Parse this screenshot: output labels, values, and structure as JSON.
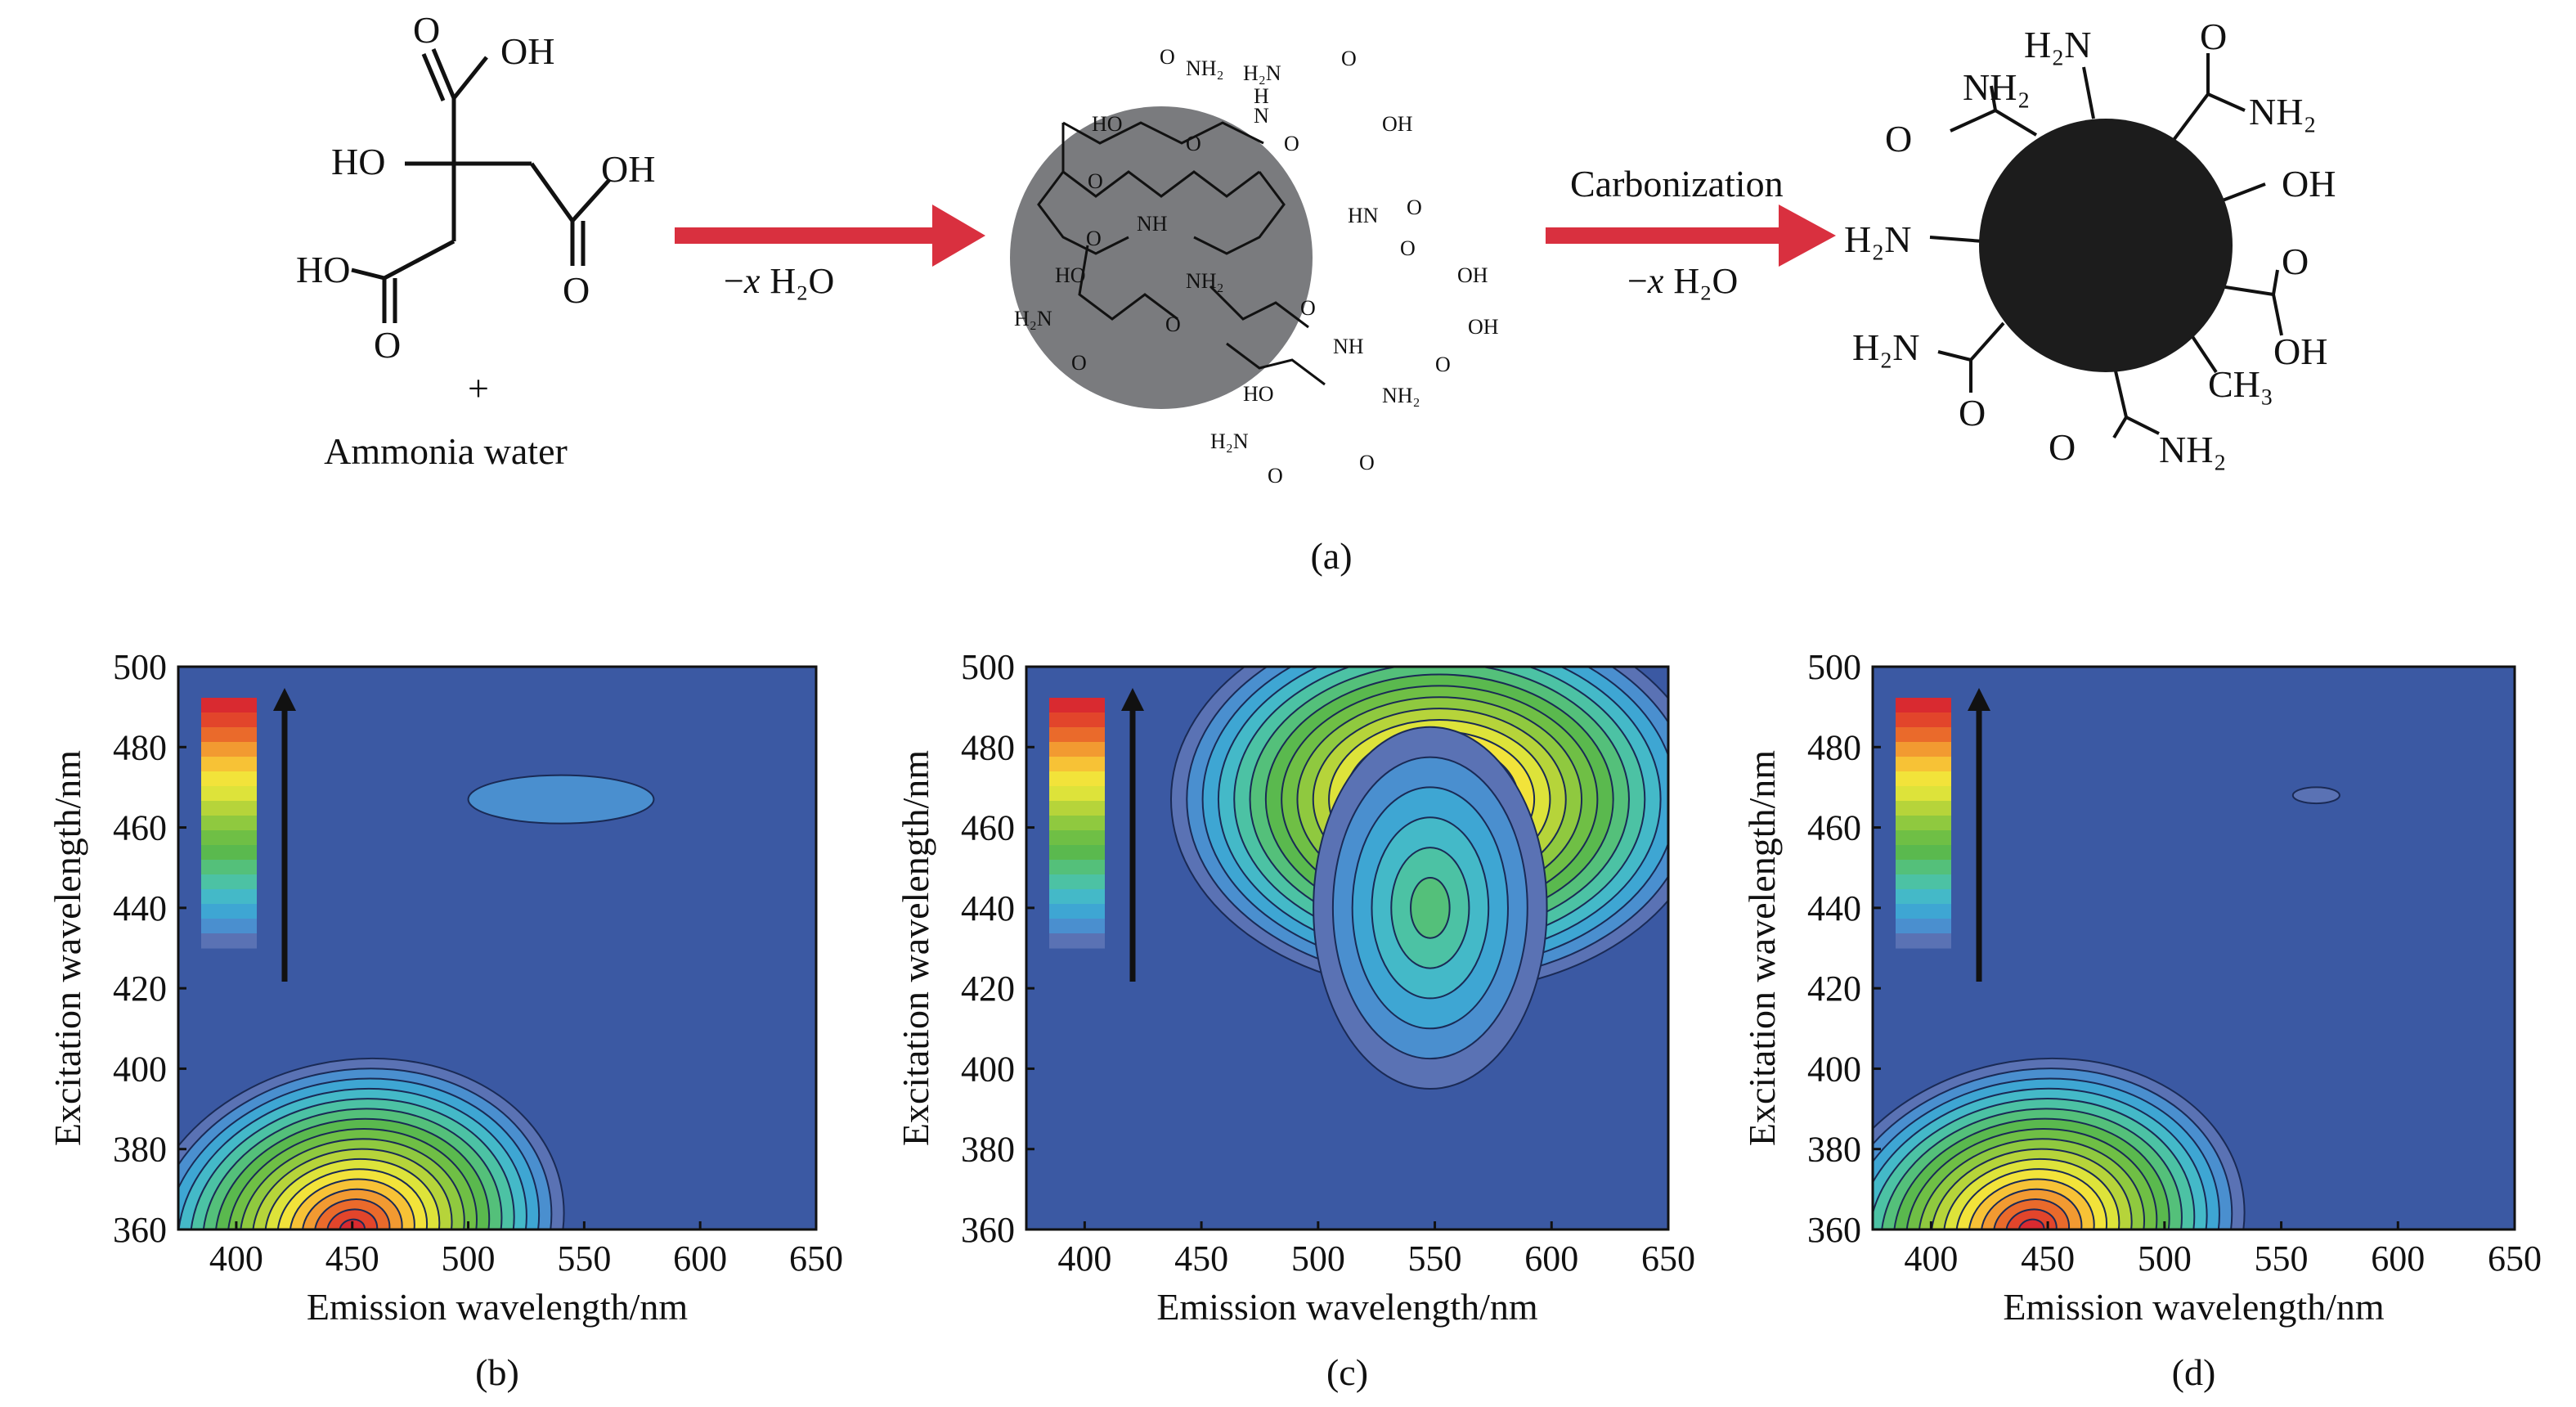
{
  "figure": {
    "panel_labels": {
      "a": "(a)",
      "b": "(b)",
      "c": "(c)",
      "d": "(d)"
    },
    "reaction": {
      "reactant_label": "+",
      "reagent": "Ammonia water",
      "step1": {
        "minus": "−",
        "x": "x",
        "water": "H₂O"
      },
      "step2": {
        "label": "Carbonization",
        "minus": "−",
        "x": "x",
        "water": "H₂O"
      }
    },
    "citric_acid": {
      "groups": {
        "oh_top": "OH",
        "o_top": "O",
        "ho_left": "HO",
        "oh_right": "OH",
        "o_right": "O",
        "ho_bottom": "HO",
        "o_bottom": "O"
      }
    },
    "polymer": {
      "groups": {
        "t1": "O",
        "t2": "NH₂",
        "t3": "H₂N",
        "t4": "O",
        "t5": "HO",
        "t6": "H",
        "t7": "N",
        "t8": "OH",
        "t9": "O",
        "t10": "O",
        "t11": "O",
        "t12": "NH",
        "t13": "HN",
        "t14": "O",
        "t15": "O",
        "t16": "HO",
        "t17": "NH₂",
        "t18": "O",
        "t19": "OH",
        "t20": "H₂N",
        "t21": "O",
        "t22": "O",
        "t23": "NH",
        "t24": "OH",
        "t25": "O",
        "t26": "O",
        "t27": "HO",
        "t28": "NH₂",
        "t29": "H₂N",
        "t30": "O",
        "t31": "O"
      }
    },
    "carbon_dot": {
      "groups": {
        "h2n_top": "H₂N",
        "nh2_a": "NH₂",
        "o_a": "O",
        "o_b": "O",
        "nh2_b": "NH₂",
        "oh_c": "OH",
        "h2n_left": "H₂N",
        "o_d": "O",
        "oh_d": "OH",
        "ch3": "CH₃",
        "h2n_e": "H₂N",
        "o_e": "O",
        "o_f": "O",
        "nh2_f": "NH₂"
      }
    }
  },
  "colors": {
    "arrow": "#d9303f",
    "particle_gray": "#7a7b7e",
    "carbon_dot": "#1c1c1c",
    "contour_background": "#3b59a3",
    "colorbar": [
      "#5a72b4",
      "#4a8fcf",
      "#3ea6d3",
      "#44b9c8",
      "#4cc2a4",
      "#54c07a",
      "#5ab94e",
      "#6fbf45",
      "#8fc93f",
      "#b6d43a",
      "#dde33a",
      "#f2e33a",
      "#f7c236",
      "#f29a31",
      "#ea6a2b",
      "#e2452b",
      "#d92a30"
    ]
  },
  "chart_data": [
    {
      "panel": "(b)",
      "type": "heatmap",
      "subtype": "contour",
      "xlabel": "Emission wavelength/nm",
      "ylabel": "Excitation wavelength/nm",
      "xlim": [
        375,
        650
      ],
      "ylim": [
        360,
        500
      ],
      "xticks": [
        400,
        450,
        500,
        550,
        600,
        650
      ],
      "yticks": [
        360,
        380,
        400,
        420,
        440,
        460,
        480,
        500
      ],
      "peaks": [
        {
          "emission": 450,
          "excitation": 360,
          "relative_intensity": 1.0
        },
        {
          "emission": 540,
          "excitation": 467,
          "relative_intensity": 0.12
        }
      ],
      "colorbar_arrow": "increasing intensity"
    },
    {
      "panel": "(c)",
      "type": "heatmap",
      "subtype": "contour",
      "xlabel": "Emission wavelength/nm",
      "ylabel": "Excitation wavelength/nm",
      "xlim": [
        375,
        650
      ],
      "ylim": [
        360,
        500
      ],
      "xticks": [
        400,
        450,
        500,
        550,
        600,
        650
      ],
      "yticks": [
        360,
        380,
        400,
        420,
        440,
        460,
        480,
        500
      ],
      "peaks": [
        {
          "emission": 552,
          "excitation": 467,
          "relative_intensity": 1.0
        },
        {
          "emission": 548,
          "excitation": 440,
          "relative_intensity": 0.55
        }
      ],
      "colorbar_arrow": "increasing intensity"
    },
    {
      "panel": "(d)",
      "type": "heatmap",
      "subtype": "contour",
      "xlabel": "Emission wavelength/nm",
      "ylabel": "Excitation wavelength/nm",
      "xlim": [
        375,
        650
      ],
      "ylim": [
        360,
        500
      ],
      "xticks": [
        400,
        450,
        500,
        550,
        600,
        650
      ],
      "yticks": [
        360,
        380,
        400,
        420,
        440,
        460,
        480,
        500
      ],
      "peaks": [
        {
          "emission": 443,
          "excitation": 360,
          "relative_intensity": 1.0
        },
        {
          "emission": 565,
          "excitation": 468,
          "relative_intensity": 0.03
        }
      ],
      "colorbar_arrow": "increasing intensity"
    }
  ]
}
